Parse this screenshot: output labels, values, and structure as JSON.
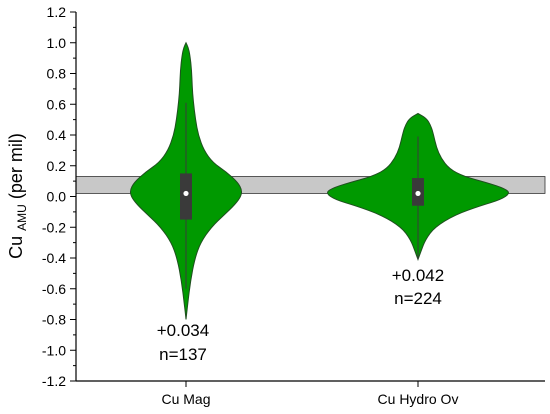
{
  "chart_data": {
    "type": "violin",
    "title": "",
    "ylabel": "Cu",
    "ylabel_subscript": "AMU",
    "ylabel_suffix": " (per mil)",
    "ylim": [
      -1.2,
      1.2
    ],
    "yticks": [
      -1.2,
      -1.0,
      -0.8,
      -0.6,
      -0.4,
      -0.2,
      0.0,
      0.2,
      0.4,
      0.6,
      0.8,
      1.0,
      1.2
    ],
    "ytick_labels": [
      "-1.2",
      "-1.0",
      "-0.8",
      "-0.6",
      "-0.4",
      "-0.2",
      "0.0",
      "0.2",
      "0.4",
      "0.6",
      "0.8",
      "1.0",
      "1.2"
    ],
    "categories": [
      "Cu Mag",
      "Cu Hydro Ov"
    ],
    "reference_band": {
      "y_low": 0.02,
      "y_high": 0.13,
      "color": "#c8c8c8"
    },
    "violin_color": "#009900",
    "box_color": "#3a3a3a",
    "series": [
      {
        "category": "Cu Mag",
        "min": -0.8,
        "max": 1.0,
        "whisker_low": -0.6,
        "whisker_high": 0.61,
        "q1": -0.15,
        "q3": 0.15,
        "median": 0.02,
        "density": [
          [
            -0.8,
            0.0
          ],
          [
            -0.7,
            0.03
          ],
          [
            -0.55,
            0.08
          ],
          [
            -0.4,
            0.16
          ],
          [
            -0.3,
            0.26
          ],
          [
            -0.2,
            0.45
          ],
          [
            -0.12,
            0.68
          ],
          [
            -0.05,
            0.88
          ],
          [
            0.0,
            0.98
          ],
          [
            0.04,
            1.0
          ],
          [
            0.09,
            0.93
          ],
          [
            0.16,
            0.72
          ],
          [
            0.22,
            0.48
          ],
          [
            0.3,
            0.32
          ],
          [
            0.4,
            0.22
          ],
          [
            0.5,
            0.17
          ],
          [
            0.62,
            0.13
          ],
          [
            0.72,
            0.11
          ],
          [
            0.82,
            0.1
          ],
          [
            0.92,
            0.07
          ],
          [
            0.97,
            0.04
          ],
          [
            1.0,
            0.0
          ]
        ],
        "annotation_mean": "+0.034",
        "annotation_n": "n=137"
      },
      {
        "category": "Cu Hydro Ov",
        "min": -0.41,
        "max": 0.54,
        "whisker_low": -0.41,
        "whisker_high": 0.39,
        "q1": -0.06,
        "q3": 0.12,
        "median": 0.02,
        "density": [
          [
            -0.41,
            0.0
          ],
          [
            -0.36,
            0.03
          ],
          [
            -0.28,
            0.08
          ],
          [
            -0.2,
            0.18
          ],
          [
            -0.12,
            0.4
          ],
          [
            -0.06,
            0.68
          ],
          [
            -0.02,
            0.9
          ],
          [
            0.02,
            1.0
          ],
          [
            0.05,
            0.95
          ],
          [
            0.09,
            0.75
          ],
          [
            0.13,
            0.5
          ],
          [
            0.18,
            0.34
          ],
          [
            0.25,
            0.25
          ],
          [
            0.32,
            0.2
          ],
          [
            0.4,
            0.17
          ],
          [
            0.46,
            0.14
          ],
          [
            0.51,
            0.09
          ],
          [
            0.54,
            0.0
          ]
        ],
        "annotation_mean": "+0.042",
        "annotation_n": "n=224"
      }
    ]
  }
}
